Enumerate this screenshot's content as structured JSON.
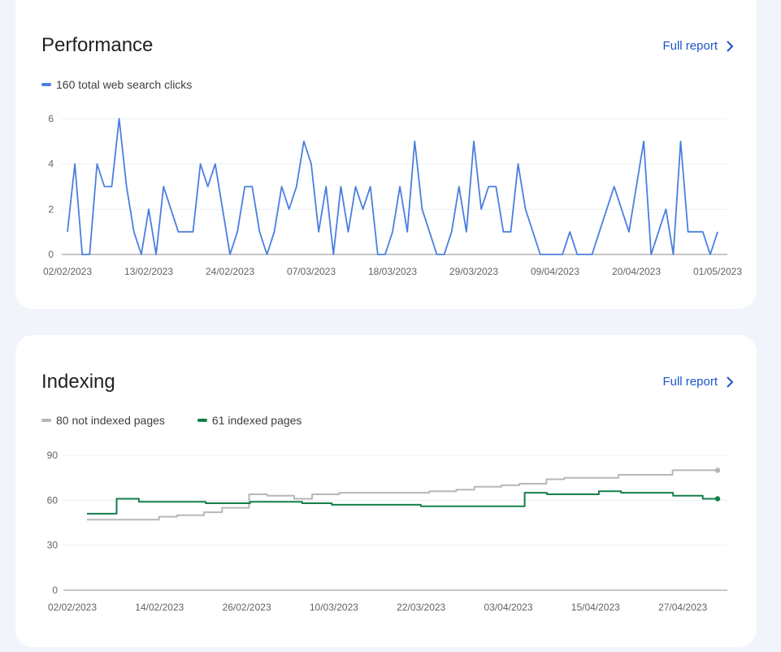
{
  "colors": {
    "clicks": "#4a7fe0",
    "not_indexed": "#b7b7b7",
    "indexed": "#13804a",
    "link": "#1a55c9"
  },
  "performance": {
    "title": "Performance",
    "full_report_label": "Full report",
    "legend_label": "160 total web search clicks"
  },
  "indexing": {
    "title": "Indexing",
    "full_report_label": "Full report",
    "legend": [
      "80 not indexed pages",
      "61 indexed pages"
    ]
  },
  "chart_data": [
    {
      "type": "line",
      "x_start": "02/02/2023",
      "x_end": "01/05/2023",
      "xticks": [
        "02/02/2023",
        "13/02/2023",
        "24/02/2023",
        "07/03/2023",
        "18/03/2023",
        "29/03/2023",
        "09/04/2023",
        "20/04/2023",
        "01/05/2023"
      ],
      "yticks": [
        0,
        2,
        4,
        6
      ],
      "ylim": [
        0,
        6
      ],
      "grid": true,
      "series": [
        {
          "name": "160 total web search clicks",
          "values": [
            1,
            4,
            0,
            0,
            4,
            3,
            3,
            6,
            3,
            1,
            0,
            2,
            0,
            3,
            2,
            1,
            1,
            1,
            4,
            3,
            4,
            2,
            0,
            1,
            3,
            3,
            1,
            0,
            1,
            3,
            2,
            3,
            5,
            4,
            1,
            3,
            0,
            3,
            1,
            3,
            2,
            3,
            0,
            0,
            1,
            3,
            1,
            5,
            2,
            1,
            0,
            0,
            1,
            3,
            1,
            5,
            2,
            3,
            3,
            1,
            1,
            4,
            2,
            1,
            0,
            0,
            0,
            0,
            1,
            0,
            0,
            0,
            1,
            2,
            3,
            2,
            1,
            3,
            5,
            0,
            1,
            2,
            0,
            5,
            1,
            1,
            1,
            0,
            1
          ]
        }
      ]
    },
    {
      "type": "line",
      "x_start": "02/02/2023",
      "x_end": "30/04/2023",
      "xticks": [
        "02/02/2023",
        "14/02/2023",
        "26/02/2023",
        "10/03/2023",
        "22/03/2023",
        "03/04/2023",
        "15/04/2023",
        "27/04/2023"
      ],
      "yticks": [
        0,
        30,
        60,
        90
      ],
      "ylim": [
        0,
        90
      ],
      "grid": true,
      "series": [
        {
          "name": "80 not indexed pages",
          "values": [
            47,
            47,
            47,
            47,
            47,
            47,
            47,
            47,
            49,
            49,
            50,
            50,
            50,
            52,
            52,
            55,
            55,
            55,
            64,
            64,
            63,
            63,
            63,
            61,
            61,
            64,
            64,
            64,
            65,
            65,
            65,
            65,
            65,
            65,
            65,
            65,
            65,
            65,
            66,
            66,
            66,
            67,
            67,
            69,
            69,
            69,
            70,
            70,
            71,
            71,
            71,
            74,
            74,
            75,
            75,
            75,
            75,
            75,
            75,
            77,
            77,
            77,
            77,
            77,
            77,
            80,
            80,
            80,
            80,
            80,
            80
          ]
        },
        {
          "name": "61 indexed pages",
          "values": [
            51,
            51,
            51,
            51,
            61,
            61,
            61,
            59,
            59,
            59,
            59,
            59,
            59,
            59,
            59,
            59,
            58,
            58,
            58,
            58,
            58,
            58,
            59,
            59,
            59,
            59,
            59,
            59,
            59,
            58,
            58,
            58,
            58,
            57,
            57,
            57,
            57,
            57,
            57,
            57,
            57,
            57,
            57,
            57,
            57,
            56,
            56,
            56,
            56,
            56,
            56,
            56,
            56,
            56,
            56,
            56,
            56,
            56,
            56,
            65,
            65,
            65,
            64,
            64,
            64,
            64,
            64,
            64,
            64,
            66,
            66,
            66,
            65,
            65,
            65,
            65,
            65,
            65,
            65,
            63,
            63,
            63,
            63,
            61,
            61,
            61
          ]
        }
      ]
    }
  ]
}
